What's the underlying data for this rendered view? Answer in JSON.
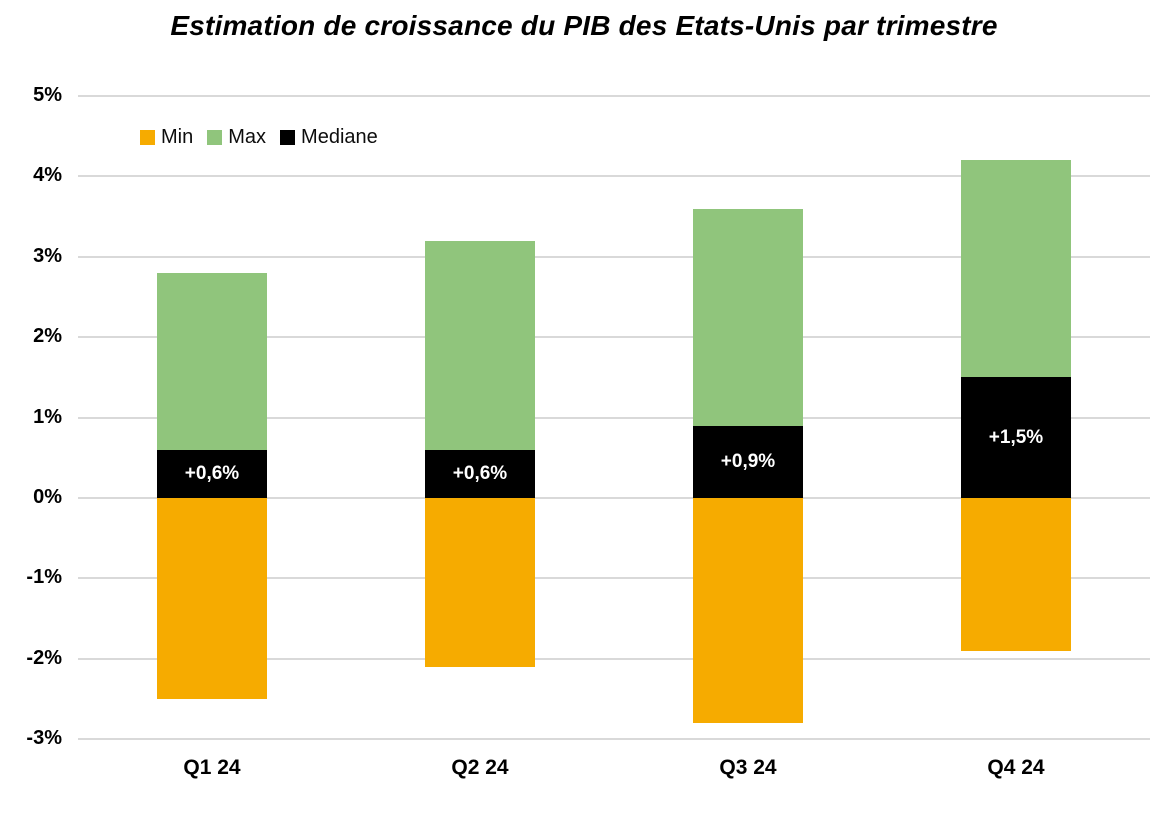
{
  "title": "Estimation de croissance du PIB des Etats-Unis par trimestre",
  "chart_data": {
    "type": "bar",
    "subtype": "stacked-range",
    "title": "Estimation de croissance du PIB des Etats-Unis par trimestre",
    "categories": [
      "Q1 24",
      "Q2 24",
      "Q3 24",
      "Q4 24"
    ],
    "series": [
      {
        "name": "Min",
        "color": "#F6AB00",
        "values": [
          -2.5,
          -2.1,
          -2.8,
          -1.9
        ]
      },
      {
        "name": "Max",
        "color": "#90C57C",
        "values": [
          2.8,
          3.2,
          3.6,
          4.2
        ]
      },
      {
        "name": "Mediane",
        "color": "#000000",
        "values": [
          0.6,
          0.6,
          0.9,
          1.5
        ]
      }
    ],
    "median_labels": [
      "+0,6%",
      "+0,6%",
      "+0,9%",
      "+1,5%"
    ],
    "y_ticks": [
      "5%",
      "4%",
      "3%",
      "2%",
      "1%",
      "0%",
      "-1%",
      "-2%",
      "-3%"
    ],
    "y_tick_values": [
      5,
      4,
      3,
      2,
      1,
      0,
      -1,
      -2,
      -3
    ],
    "ylim": [
      -3,
      5
    ],
    "grid": true,
    "gridline_color": "#D9D9D9",
    "legend_position": "top-left-inside",
    "xlabel": "",
    "ylabel": ""
  }
}
